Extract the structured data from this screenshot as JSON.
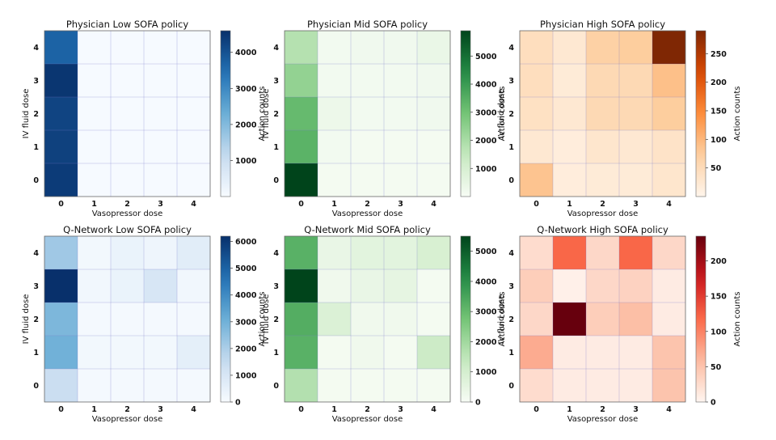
{
  "figure": {
    "xlabel": "Vasopressor dose",
    "ylabel": "IV fluid dose",
    "colorbar_label": "Action counts"
  },
  "chart_data": [
    {
      "type": "heatmap",
      "title": "Physician Low SOFA policy",
      "colormap": "Blues",
      "x_ticks": [
        "0",
        "1",
        "2",
        "3",
        "4"
      ],
      "y_ticks": [
        "0",
        "1",
        "2",
        "3",
        "4"
      ],
      "vmin": 0,
      "vmax": 4600,
      "colorbar_ticks": [
        1000,
        2000,
        3000,
        4000
      ],
      "rows_top_to_bottom": [
        [
          3700,
          20,
          20,
          20,
          20
        ],
        [
          4500,
          20,
          20,
          20,
          20
        ],
        [
          4250,
          20,
          20,
          20,
          20
        ],
        [
          4300,
          20,
          20,
          20,
          20
        ],
        [
          4400,
          20,
          20,
          20,
          20
        ]
      ]
    },
    {
      "type": "heatmap",
      "title": "Physician Mid SOFA policy",
      "colormap": "Greens",
      "x_ticks": [
        "0",
        "1",
        "2",
        "3",
        "4"
      ],
      "y_ticks": [
        "0",
        "1",
        "2",
        "3",
        "4"
      ],
      "vmin": 0,
      "vmax": 5900,
      "colorbar_ticks": [
        1000,
        2000,
        3000,
        4000,
        5000
      ],
      "rows_top_to_bottom": [
        [
          1800,
          150,
          200,
          200,
          400
        ],
        [
          2400,
          150,
          150,
          150,
          200
        ],
        [
          3200,
          300,
          150,
          150,
          200
        ],
        [
          3400,
          150,
          100,
          100,
          100
        ],
        [
          5900,
          100,
          100,
          100,
          100
        ]
      ]
    },
    {
      "type": "heatmap",
      "title": "Physician High SOFA policy",
      "colormap": "Oranges",
      "x_ticks": [
        "0",
        "1",
        "2",
        "3",
        "4"
      ],
      "y_ticks": [
        "0",
        "1",
        "2",
        "3",
        "4"
      ],
      "vmin": 0,
      "vmax": 290,
      "colorbar_ticks": [
        50,
        100,
        150,
        200,
        250
      ],
      "rows_top_to_bottom": [
        [
          45,
          25,
          70,
          75,
          290
        ],
        [
          45,
          20,
          55,
          55,
          90
        ],
        [
          40,
          25,
          55,
          55,
          75
        ],
        [
          25,
          15,
          30,
          25,
          35
        ],
        [
          85,
          15,
          20,
          20,
          30
        ]
      ]
    },
    {
      "type": "heatmap",
      "title": "Q-Network Low SOFA policy",
      "colormap": "Blues",
      "x_ticks": [
        "0",
        "1",
        "2",
        "3",
        "4"
      ],
      "y_ticks": [
        "0",
        "1",
        "2",
        "3",
        "4"
      ],
      "vmin": 0,
      "vmax": 6200,
      "colorbar_ticks": [
        0,
        1000,
        2000,
        3000,
        4000,
        5000,
        6000
      ],
      "rows_top_to_bottom": [
        [
          2200,
          150,
          400,
          300,
          700
        ],
        [
          6200,
          200,
          400,
          1000,
          200
        ],
        [
          2800,
          100,
          100,
          100,
          100
        ],
        [
          3000,
          150,
          150,
          150,
          600
        ],
        [
          1400,
          100,
          100,
          100,
          100
        ]
      ]
    },
    {
      "type": "heatmap",
      "title": "Q-Network Mid SOFA policy",
      "colormap": "Greens",
      "x_ticks": [
        "0",
        "1",
        "2",
        "3",
        "4"
      ],
      "y_ticks": [
        "0",
        "1",
        "2",
        "3",
        "4"
      ],
      "vmin": 0,
      "vmax": 5500,
      "colorbar_ticks": [
        0,
        1000,
        2000,
        3000,
        4000,
        5000
      ],
      "rows_top_to_bottom": [
        [
          3200,
          400,
          600,
          600,
          900
        ],
        [
          5500,
          200,
          400,
          500,
          100
        ],
        [
          3300,
          800,
          200,
          200,
          100
        ],
        [
          3200,
          100,
          200,
          100,
          1200
        ],
        [
          1700,
          100,
          100,
          100,
          100
        ]
      ]
    },
    {
      "type": "heatmap",
      "title": "Q-Network High SOFA policy",
      "colormap": "Reds",
      "x_ticks": [
        "0",
        "1",
        "2",
        "3",
        "4"
      ],
      "y_ticks": [
        "0",
        "1",
        "2",
        "3",
        "4"
      ],
      "vmin": 0,
      "vmax": 235,
      "colorbar_ticks": [
        0,
        50,
        100,
        150,
        200
      ],
      "rows_top_to_bottom": [
        [
          25,
          120,
          30,
          120,
          30
        ],
        [
          40,
          5,
          30,
          35,
          10
        ],
        [
          30,
          235,
          40,
          55,
          10
        ],
        [
          70,
          10,
          10,
          10,
          50
        ],
        [
          25,
          10,
          10,
          10,
          50
        ]
      ]
    }
  ]
}
